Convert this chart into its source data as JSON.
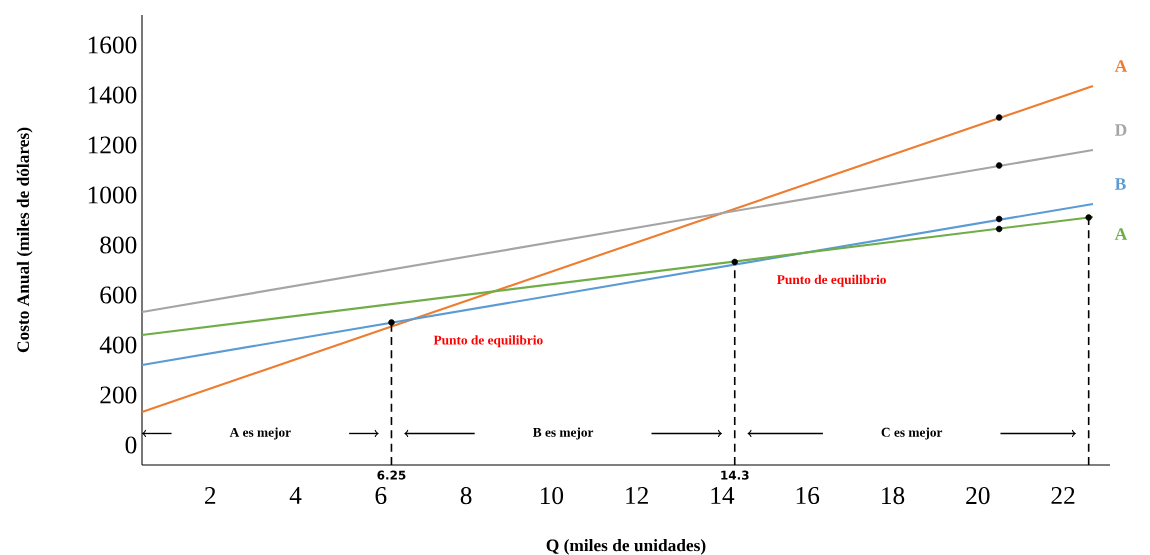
{
  "chart_data": {
    "type": "line",
    "xlabel": "Q (miles de unidades)",
    "ylabel": "Costo Anual (miles de dólares)",
    "xlim": [
      0.4,
      23.1
    ],
    "ylim": [
      -80,
      1720
    ],
    "xticks": [
      2,
      4,
      6,
      8,
      10,
      12,
      14,
      16,
      18,
      20,
      22
    ],
    "yticks": [
      0,
      200,
      400,
      600,
      800,
      1000,
      1200,
      1400,
      1600
    ],
    "grid": false,
    "marker": "none",
    "line_style": "solid",
    "series": [
      {
        "name": "A",
        "color": "#ed7d31",
        "x": [
          0.4,
          22.7
        ],
        "values": [
          132,
          1436
        ]
      },
      {
        "name": "D",
        "color": "#a5a5a5",
        "x": [
          0.4,
          22.7
        ],
        "values": [
          532,
          1180
        ]
      },
      {
        "name": "B",
        "color": "#5b9bd5",
        "x": [
          0.4,
          22.7
        ],
        "values": [
          320,
          964
        ]
      },
      {
        "name": "A",
        "color": "#70ad47",
        "x": [
          0.4,
          22.7
        ],
        "values": [
          440,
          912
        ]
      },
      {
        "type": "scatter",
        "color": "#000000",
        "x": [
          6.25,
          14.3,
          20.5,
          20.5,
          20.5,
          20.5,
          22.6
        ],
        "values": [
          490,
          732,
          1310,
          1118,
          904,
          864,
          910
        ]
      }
    ],
    "ref_lines": [
      {
        "axis": "x",
        "value": 6.25,
        "label": "6.25",
        "color": "#000000",
        "line_style": "dashed"
      },
      {
        "axis": "x",
        "value": 14.3,
        "label": "14.3",
        "color": "#000000",
        "line_style": "dashed"
      },
      {
        "axis": "x",
        "value": 22.6,
        "color": "#000000",
        "line_style": "dashed"
      }
    ],
    "annotations": [
      "Punto de equilibrio",
      "Punto de equilibrio",
      "A es mejor",
      "B es mejor",
      "C es mejor"
    ]
  }
}
